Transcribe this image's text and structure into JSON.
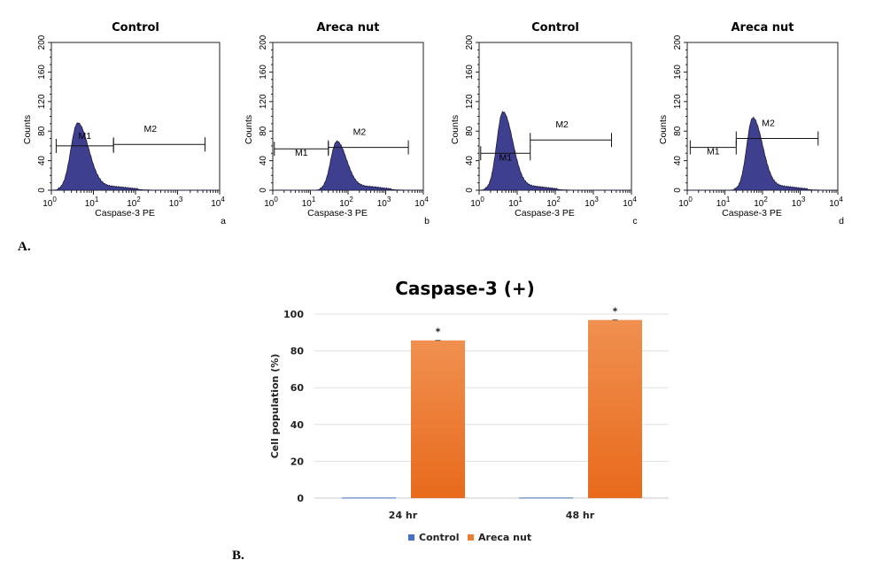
{
  "panel_A_label": "A.",
  "panel_B_label": "B.",
  "chart_data": [
    {
      "type": "histogram",
      "title": "Control",
      "panel_letter": "a",
      "xlabel": "Caspase-3 PE",
      "ylabel": "Counts",
      "x_scale": "log",
      "xlim": [
        1,
        10000
      ],
      "ylim": [
        0,
        200
      ],
      "yticks": [
        0,
        40,
        80,
        120,
        160,
        200
      ],
      "xticks": [
        "10^0",
        "10^1",
        "10^2",
        "10^3",
        "10^4"
      ],
      "peak": {
        "x": 4.2,
        "count": 90
      },
      "markers": [
        {
          "name": "M1",
          "from": 1.3,
          "to": 30,
          "level": 60
        },
        {
          "name": "M2",
          "from": 30,
          "to": 4500,
          "level": 62
        }
      ],
      "fill_color": "#3f3f8f"
    },
    {
      "type": "histogram",
      "title": "Areca nut",
      "panel_letter": "b",
      "xlabel": "Caspase-3 PE",
      "ylabel": "Counts",
      "x_scale": "log",
      "xlim": [
        1,
        10000
      ],
      "ylim": [
        0,
        200
      ],
      "yticks": [
        0,
        40,
        80,
        120,
        160,
        200
      ],
      "xticks": [
        "10^0",
        "10^1",
        "10^2",
        "10^3",
        "10^4"
      ],
      "peak": {
        "x": 50,
        "count": 65
      },
      "markers": [
        {
          "name": "M1",
          "from": 1.1,
          "to": 30,
          "level": 56
        },
        {
          "name": "M2",
          "from": 30,
          "to": 4000,
          "level": 58
        }
      ],
      "fill_color": "#3f3f8f"
    },
    {
      "type": "histogram",
      "title": "Control",
      "panel_letter": "c",
      "xlabel": "Caspase-3 PE",
      "ylabel": "Counts",
      "x_scale": "log",
      "xlim": [
        1,
        10000
      ],
      "ylim": [
        0,
        200
      ],
      "yticks": [
        0,
        40,
        80,
        120,
        160,
        200
      ],
      "xticks": [
        "10^0",
        "10^1",
        "10^2",
        "10^3",
        "10^4"
      ],
      "peak": {
        "x": 4.2,
        "count": 105
      },
      "markers": [
        {
          "name": "M1",
          "from": 1.1,
          "to": 22,
          "level": 50
        },
        {
          "name": "M2",
          "from": 22,
          "to": 3000,
          "level": 68
        }
      ],
      "fill_color": "#3f3f8f"
    },
    {
      "type": "histogram",
      "title": "Areca nut",
      "panel_letter": "d",
      "xlabel": "Caspase-3 PE",
      "ylabel": "Counts",
      "x_scale": "log",
      "xlim": [
        1,
        10000
      ],
      "ylim": [
        0,
        200
      ],
      "yticks": [
        0,
        40,
        80,
        120,
        160,
        200
      ],
      "xticks": [
        "10^0",
        "10^1",
        "10^2",
        "10^3",
        "10^4"
      ],
      "peak": {
        "x": 55,
        "count": 97
      },
      "markers": [
        {
          "name": "M1",
          "from": 1.2,
          "to": 20,
          "level": 58
        },
        {
          "name": "M2",
          "from": 20,
          "to": 3000,
          "level": 70
        }
      ],
      "fill_color": "#3f3f8f"
    },
    {
      "type": "bar",
      "title": "Caspase-3 (+)",
      "xlabel": "",
      "ylabel": "Cell population (%)",
      "categories": [
        "24 hr",
        "48 hr"
      ],
      "ylim": [
        0,
        100
      ],
      "yticks": [
        0,
        20,
        40,
        60,
        80,
        100
      ],
      "grid": true,
      "legend": "bottom",
      "series": [
        {
          "name": "Control",
          "values": [
            0.3,
            0.3
          ],
          "color": "#4472c4"
        },
        {
          "name": "Areca nut",
          "values": [
            85.7,
            96.8
          ],
          "color": "#ed7d31"
        }
      ],
      "annotations": [
        "*",
        "*"
      ]
    }
  ]
}
